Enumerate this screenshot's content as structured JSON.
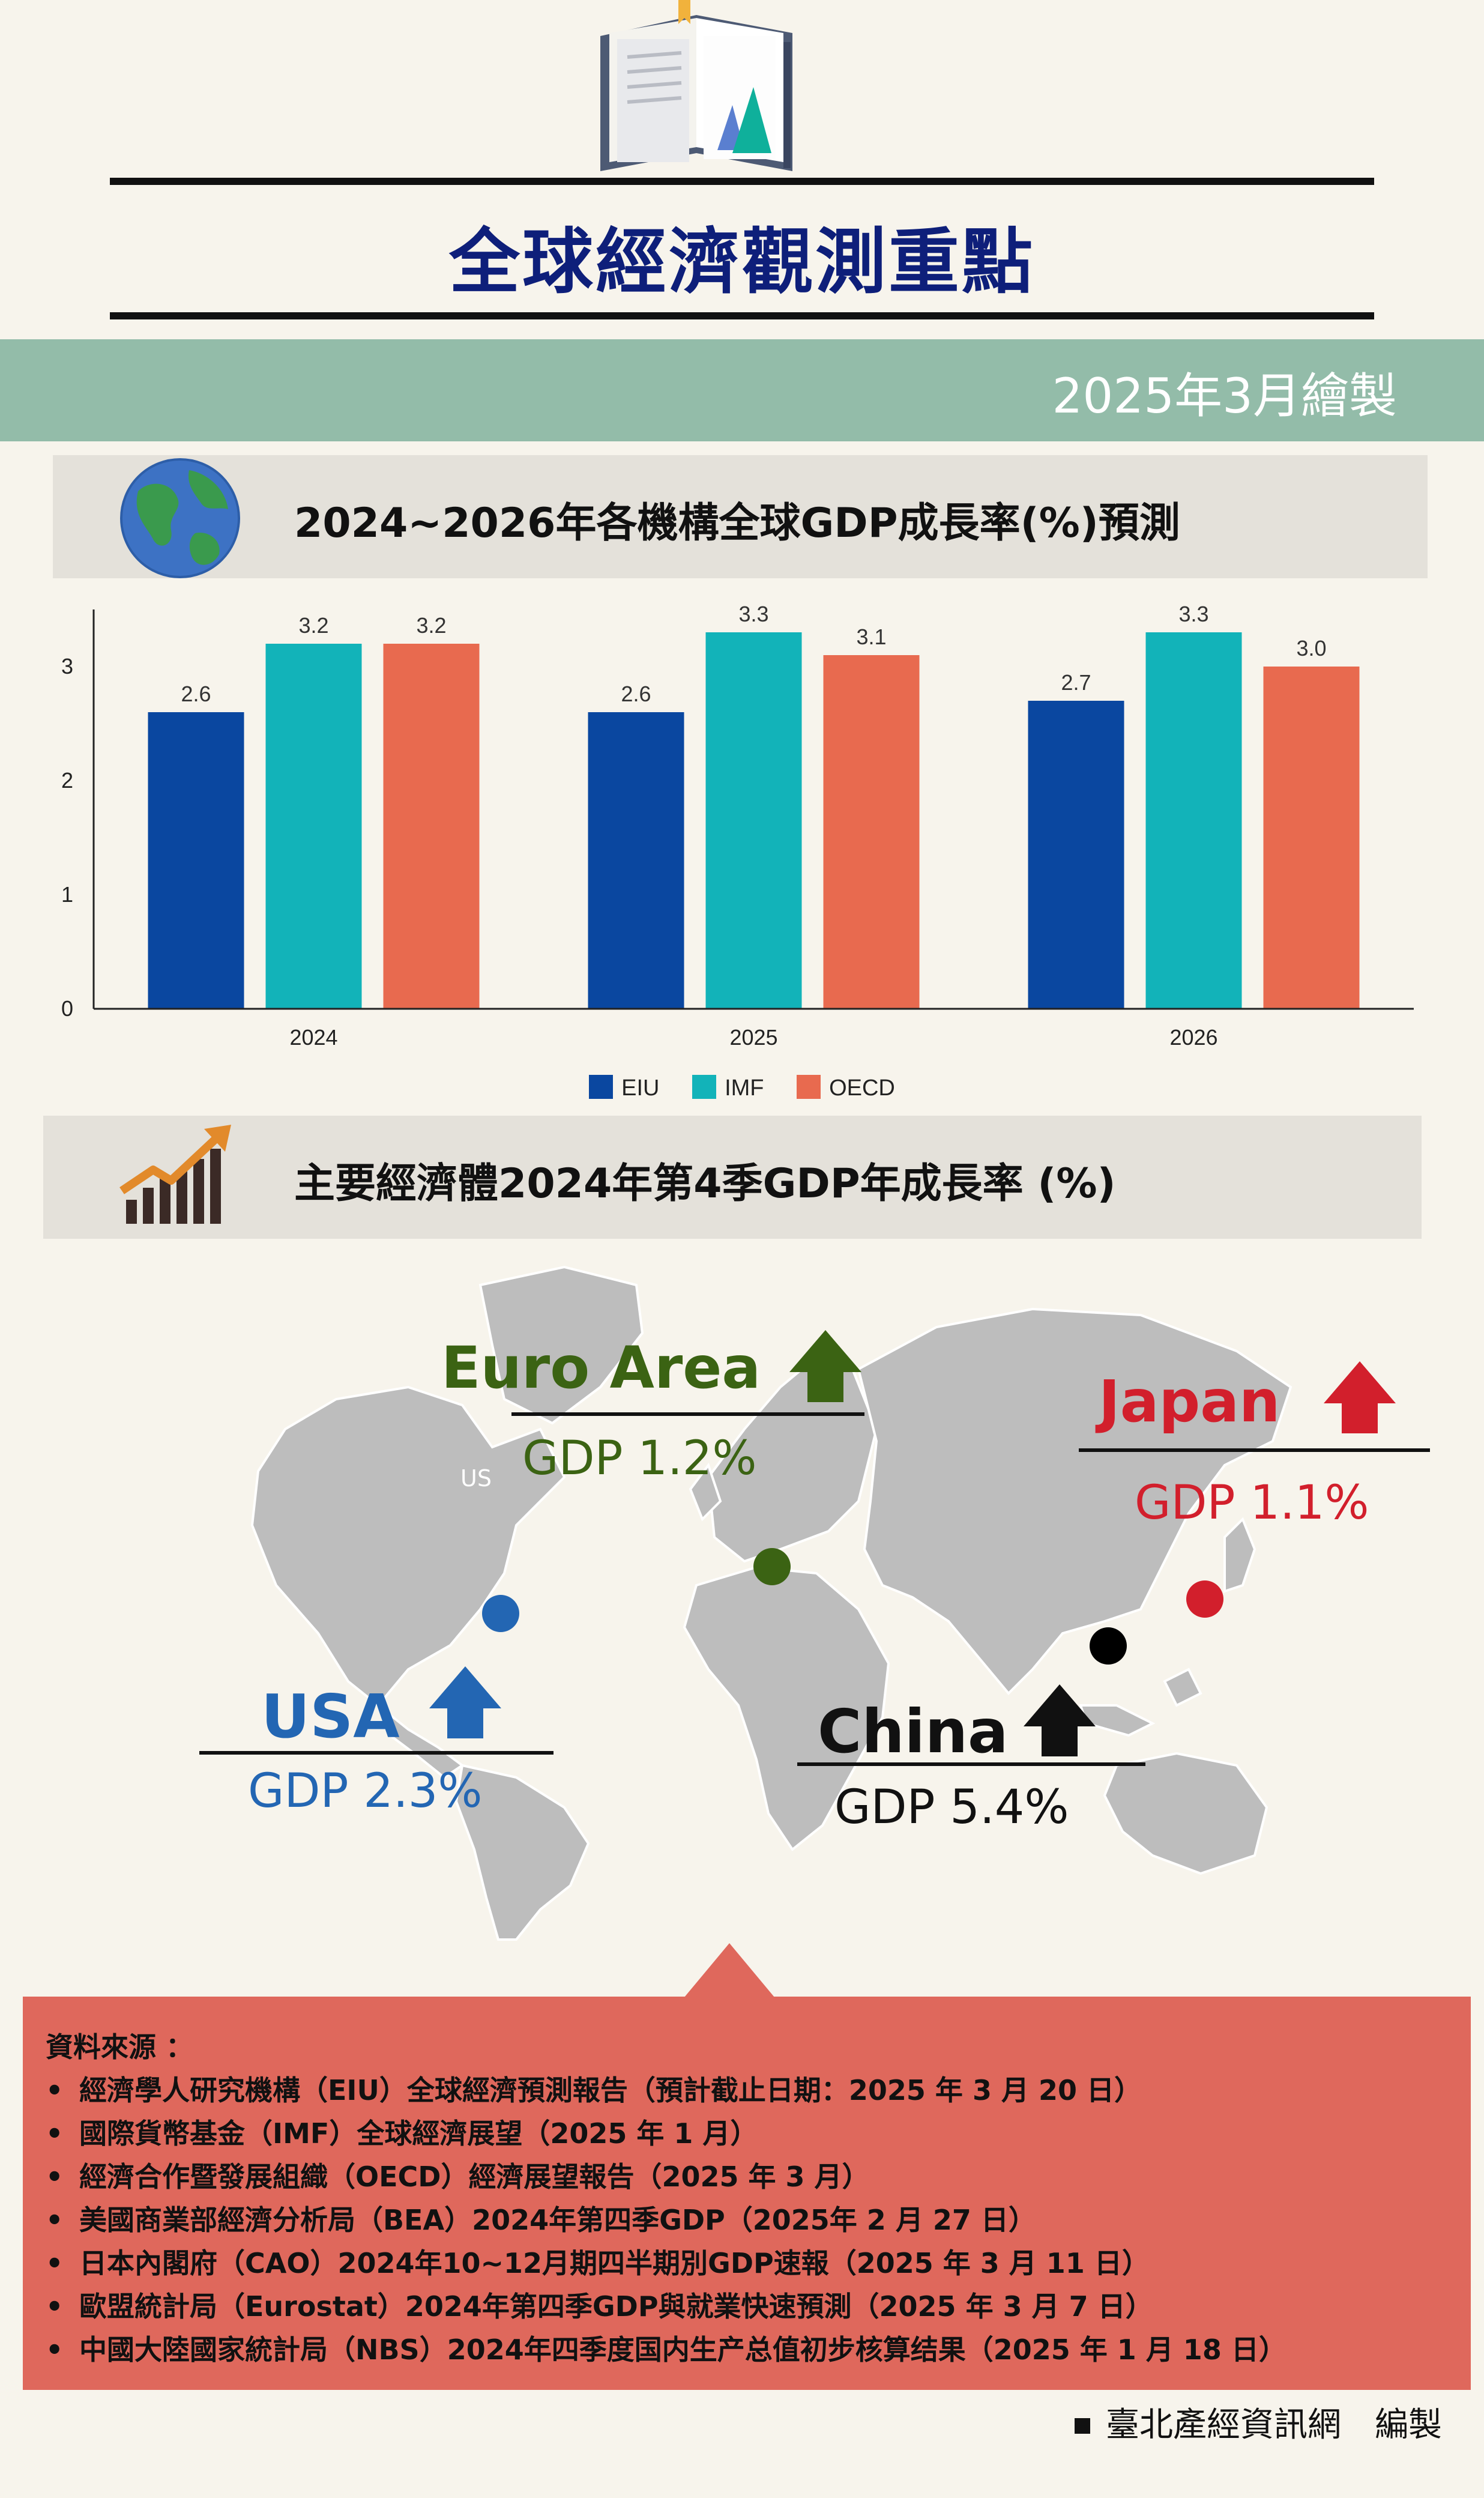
{
  "header": {
    "title": "全球經濟觀測重點",
    "date": "2025年3月繪製"
  },
  "section1": {
    "title": "2024~2026年各機構全球GDP成長率(%)預測",
    "icon": "globe-icon"
  },
  "chart_data": {
    "type": "bar",
    "categories": [
      "2024",
      "2025",
      "2026"
    ],
    "series": [
      {
        "name": "EIU",
        "values": [
          2.6,
          2.6,
          2.7
        ],
        "color": "#0a47a0"
      },
      {
        "name": "IMF",
        "values": [
          3.2,
          3.3,
          3.3
        ],
        "color": "#12b3b9"
      },
      {
        "name": "OECD",
        "values": [
          3.2,
          3.1,
          3.0
        ],
        "color": "#e86a4f"
      }
    ],
    "data_labels": [
      [
        "2.6",
        "2.6",
        "2.7"
      ],
      [
        "3.2",
        "3.3",
        "3.3"
      ],
      [
        "3.2",
        "3.1",
        "3.0"
      ]
    ],
    "yticks": [
      "0",
      "1",
      "2",
      "3"
    ],
    "ylim": [
      0,
      3.5
    ],
    "legend": "bottom-center",
    "grid": false
  },
  "section2": {
    "title": "主要經濟體2024年第4季GDP年成長率 (%)",
    "icon": "growth-chart-icon"
  },
  "map": {
    "us_label": "US",
    "regions": [
      {
        "name": "Euro Area",
        "gdp": "GDP 1.2%",
        "color": "#3b6313"
      },
      {
        "name": "Japan",
        "gdp": "GDP 1.1%",
        "color": "#d21f2c"
      },
      {
        "name": "USA",
        "gdp": "GDP 2.3%",
        "color": "#2366b3"
      },
      {
        "name": "China",
        "gdp": "GDP 5.4%",
        "color": "#111111"
      }
    ]
  },
  "sources": {
    "heading": "資料來源 ：",
    "items": [
      "經濟學人研究機構（EIU）全球經濟預測報告（預計截止日期：2025 年 3 月 20 日）",
      "國際貨幣基金（IMF）全球經濟展望（2025 年 1 月）",
      "經濟合作暨發展組織（OECD）經濟展望報告（2025 年 3 月）",
      "美國商業部經濟分析局（BEA）2024年第四季GDP（2025年 2 月 27 日）",
      "日本內閣府（CAO）2024年10~12月期四半期別GDP速報（2025 年 3 月 11 日）",
      "歐盟統計局（Eurostat）2024年第四季GDP與就業快速預測（2025 年 3 月 7 日）",
      "中國大陸國家統計局（NBS）2024年四季度国内生产总值初步核算结果（2025 年 1 月 18 日）"
    ]
  },
  "footer": {
    "text": "臺北產經資訊網　編製"
  }
}
